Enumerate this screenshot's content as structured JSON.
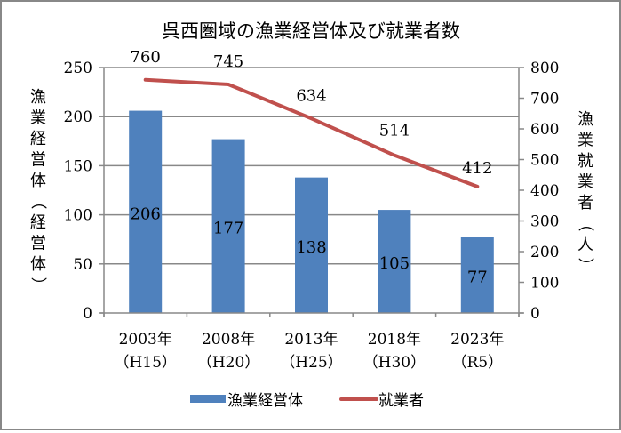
{
  "chart_data": {
    "type": "bar+line",
    "title": "呉西圏域の漁業経営体及び就業者数",
    "categories": [
      "2003年（H15）",
      "2008年（H20）",
      "2013年（H25）",
      "2018年（H30）",
      "2023年（R5）"
    ],
    "category_lines": [
      [
        "2003年",
        "（H15）"
      ],
      [
        "2008年",
        "（H20）"
      ],
      [
        "2013年",
        "（H25）"
      ],
      [
        "2018年",
        "（H30）"
      ],
      [
        "2023年",
        "（R5）"
      ]
    ],
    "series": [
      {
        "name": "漁業経営体",
        "type": "bar",
        "axis": "left",
        "color": "#4f81bd",
        "values": [
          206,
          177,
          138,
          105,
          77
        ]
      },
      {
        "name": "就業者",
        "type": "line",
        "axis": "right",
        "color": "#c0504d",
        "values": [
          760,
          745,
          634,
          514,
          412
        ]
      }
    ],
    "ylabel_left": "漁業経営体（経営体）",
    "ylabel_right": "漁業就業者（人）",
    "ylim_left": [
      0,
      250
    ],
    "ylim_right": [
      0,
      800
    ],
    "yticks_left": [
      0,
      50,
      100,
      150,
      200,
      250
    ],
    "yticks_right": [
      0,
      100,
      200,
      300,
      400,
      500,
      600,
      700,
      800
    ],
    "grid": true,
    "legend_position": "bottom"
  },
  "legend": {
    "bar_label": "漁業経営体",
    "line_label": "就業者"
  }
}
